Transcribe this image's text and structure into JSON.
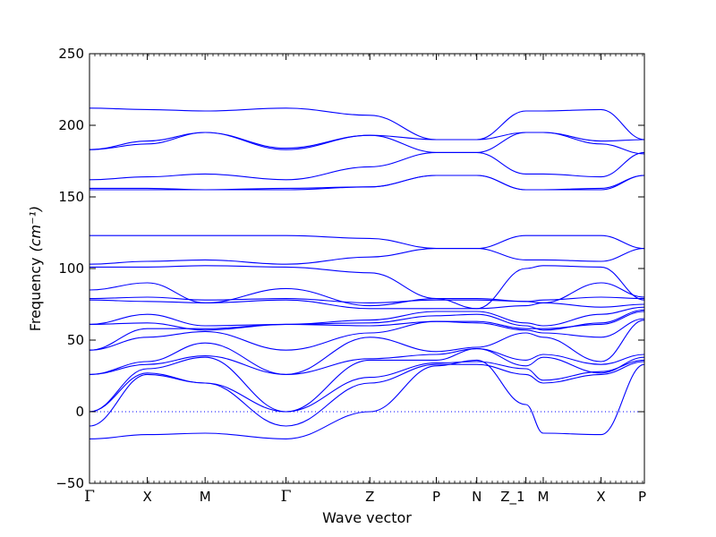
{
  "chart_data": {
    "type": "line",
    "title": "",
    "xlabel": "Wave vector",
    "ylabel": "Frequency",
    "ylabel_unit": "(cm⁻¹)",
    "ylim": [
      -50,
      250
    ],
    "yticks": [
      -50,
      0,
      50,
      100,
      150,
      200,
      250
    ],
    "xlim": [
      0,
      9.6
    ],
    "grid": false,
    "legend": "none",
    "line_color": "#0000ff",
    "zero_line_color": "#0000ff",
    "high_symmetry_points": [
      {
        "label": "Γ",
        "x": 0
      },
      {
        "label": "X",
        "x": 1.0
      },
      {
        "label": "M",
        "x": 2.0
      },
      {
        "label": "Γ",
        "x": 3.4
      },
      {
        "label": "Z",
        "x": 4.85
      },
      {
        "label": "P",
        "x": 6.0
      },
      {
        "label": "N",
        "x": 6.7
      },
      {
        "label": "Z_1",
        "x": 7.55
      },
      {
        "label": "M",
        "x": 7.85
      },
      {
        "label": "X",
        "x": 8.85
      },
      {
        "label": "P",
        "x": 9.6
      }
    ],
    "series": [
      {
        "x": [
          0,
          1.0,
          2.0,
          3.4,
          4.85,
          6.0,
          6.7,
          7.55,
          7.85,
          8.85,
          9.6
        ],
        "y": [
          -19,
          -16,
          -15,
          -19,
          0,
          32,
          36,
          5,
          -15,
          -16,
          33
        ]
      },
      {
        "x": [
          0,
          1.0,
          2.0,
          3.4,
          4.85,
          6.0,
          6.7,
          7.55,
          7.85,
          8.85,
          9.6
        ],
        "y": [
          -10,
          26,
          20,
          -10,
          20,
          33,
          33,
          26,
          20,
          26,
          35
        ]
      },
      {
        "x": [
          0,
          1.0,
          2.0,
          3.4,
          4.85,
          6.0,
          6.7,
          7.55,
          7.85,
          8.85,
          9.6
        ],
        "y": [
          0,
          27,
          20,
          0,
          24,
          34,
          35,
          30,
          22,
          28,
          36
        ]
      },
      {
        "x": [
          0,
          1.0,
          2.0,
          3.4,
          4.85,
          6.0,
          6.7,
          7.55,
          7.85,
          8.85,
          9.6
        ],
        "y": [
          0,
          30,
          38,
          0,
          36,
          36,
          44,
          32,
          38,
          27,
          38
        ]
      },
      {
        "x": [
          0,
          1.0,
          2.0,
          3.4,
          4.85,
          6.0,
          6.7,
          7.55,
          7.85,
          8.85,
          9.6
        ],
        "y": [
          26,
          33,
          39,
          26,
          37,
          40,
          44,
          36,
          40,
          33,
          40
        ]
      },
      {
        "x": [
          0,
          1.0,
          2.0,
          3.4,
          4.85,
          6.0,
          6.7,
          7.55,
          7.85,
          8.85,
          9.6
        ],
        "y": [
          26,
          35,
          48,
          26,
          52,
          42,
          45,
          55,
          52,
          35,
          64
        ]
      },
      {
        "x": [
          0,
          1.0,
          2.0,
          3.4,
          4.85,
          6.0,
          6.7,
          7.55,
          7.85,
          8.85,
          9.6
        ],
        "y": [
          43,
          52,
          56,
          43,
          55,
          63,
          62,
          57,
          55,
          52,
          65
        ]
      },
      {
        "x": [
          0,
          1.0,
          2.0,
          3.4,
          4.85,
          6.0,
          6.7,
          7.55,
          7.85,
          8.85,
          9.6
        ],
        "y": [
          43,
          58,
          58,
          61,
          60,
          63,
          63,
          58,
          58,
          61,
          70
        ]
      },
      {
        "x": [
          0,
          1.0,
          2.0,
          3.4,
          4.85,
          6.0,
          6.7,
          7.55,
          7.85,
          8.85,
          9.6
        ],
        "y": [
          61,
          62,
          57,
          61,
          62,
          67,
          68,
          60,
          57,
          62,
          71
        ]
      },
      {
        "x": [
          0,
          1.0,
          2.0,
          3.4,
          4.85,
          6.0,
          6.7,
          7.55,
          7.85,
          8.85,
          9.6
        ],
        "y": [
          61,
          68,
          60,
          61,
          64,
          70,
          70,
          62,
          60,
          68,
          73
        ]
      },
      {
        "x": [
          0,
          1.0,
          2.0,
          3.4,
          4.85,
          6.0,
          6.7,
          7.55,
          7.85,
          8.85,
          9.6
        ],
        "y": [
          78,
          77,
          76,
          78,
          72,
          72,
          72,
          74,
          76,
          73,
          75
        ]
      },
      {
        "x": [
          0,
          1.0,
          2.0,
          3.4,
          4.85,
          6.0,
          6.7,
          7.55,
          7.85,
          8.85,
          9.6
        ],
        "y": [
          79,
          80,
          78,
          79,
          76,
          78,
          78,
          77,
          78,
          80,
          79
        ]
      },
      {
        "x": [
          0,
          1.0,
          2.0,
          3.4,
          4.85,
          6.0,
          6.7,
          7.55,
          7.85,
          8.85,
          9.6
        ],
        "y": [
          85,
          90,
          76,
          86,
          74,
          79,
          79,
          77,
          76,
          90,
          80
        ]
      },
      {
        "x": [
          0,
          1.0,
          2.0,
          3.4,
          4.85,
          6.0,
          6.7,
          7.55,
          7.85,
          8.85,
          9.6
        ],
        "y": [
          101,
          101,
          102,
          101,
          97,
          79,
          72,
          100,
          102,
          101,
          78
        ]
      },
      {
        "x": [
          0,
          1.0,
          2.0,
          3.4,
          4.85,
          6.0,
          6.7,
          7.55,
          7.85,
          8.85,
          9.6
        ],
        "y": [
          103,
          105,
          106,
          103,
          108,
          114,
          114,
          106,
          106,
          105,
          114
        ]
      },
      {
        "x": [
          0,
          1.0,
          2.0,
          3.4,
          4.85,
          6.0,
          6.7,
          7.55,
          7.85,
          8.85,
          9.6
        ],
        "y": [
          123,
          123,
          123,
          123,
          121,
          114,
          114,
          123,
          123,
          123,
          114
        ]
      },
      {
        "x": [
          0,
          1.0,
          2.0,
          3.4,
          4.85,
          6.0,
          6.7,
          7.55,
          7.85,
          8.85,
          9.6
        ],
        "y": [
          155,
          155,
          155,
          155,
          157,
          165,
          165,
          155,
          155,
          155,
          165
        ]
      },
      {
        "x": [
          0,
          1.0,
          2.0,
          3.4,
          4.85,
          6.0,
          6.7,
          7.55,
          7.85,
          8.85,
          9.6
        ],
        "y": [
          156,
          156,
          155,
          156,
          157,
          165,
          165,
          155,
          155,
          156,
          165
        ]
      },
      {
        "x": [
          0,
          1.0,
          2.0,
          3.4,
          4.85,
          6.0,
          6.7,
          7.55,
          7.85,
          8.85,
          9.6
        ],
        "y": [
          162,
          164,
          166,
          162,
          171,
          181,
          181,
          166,
          166,
          164,
          181
        ]
      },
      {
        "x": [
          0,
          1.0,
          2.0,
          3.4,
          4.85,
          6.0,
          6.7,
          7.55,
          7.85,
          8.85,
          9.6
        ],
        "y": [
          183,
          187,
          195,
          183,
          193,
          181,
          181,
          195,
          195,
          187,
          180
        ]
      },
      {
        "x": [
          0,
          1.0,
          2.0,
          3.4,
          4.85,
          6.0,
          6.7,
          7.55,
          7.85,
          8.85,
          9.6
        ],
        "y": [
          183,
          189,
          195,
          184,
          193,
          190,
          190,
          195,
          195,
          189,
          190
        ]
      },
      {
        "x": [
          0,
          1.0,
          2.0,
          3.4,
          4.85,
          6.0,
          6.7,
          7.55,
          7.85,
          8.85,
          9.6
        ],
        "y": [
          212,
          211,
          210,
          212,
          207,
          190,
          190,
          210,
          210,
          211,
          190
        ]
      }
    ]
  }
}
